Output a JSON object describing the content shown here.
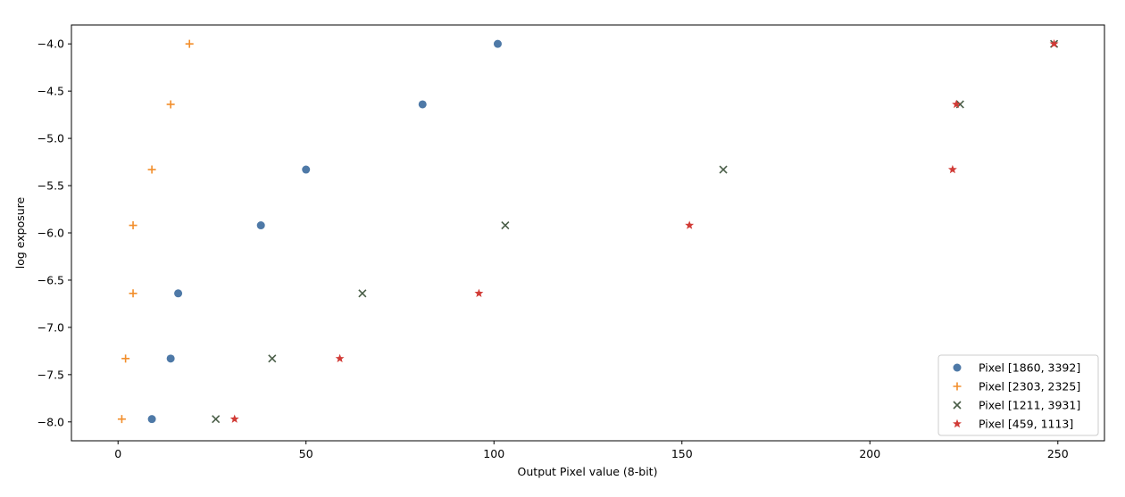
{
  "chart_data": {
    "type": "scatter",
    "title": "",
    "xlabel": "Output Pixel value (8-bit)",
    "ylabel": "log exposure",
    "xlim": [
      -12.4,
      262.4
    ],
    "ylim": [
      -8.2,
      -3.8
    ],
    "xticks": [
      0,
      50,
      100,
      150,
      200,
      250
    ],
    "yticks": [
      -8.0,
      -7.5,
      -7.0,
      -6.5,
      -6.0,
      -5.5,
      -5.0,
      -4.5,
      -4.0
    ],
    "ytick_labels": [
      "−8.0",
      "−7.5",
      "−7.0",
      "−6.5",
      "−6.0",
      "−5.5",
      "−5.0",
      "−4.5",
      "−4.0"
    ],
    "grid": false,
    "legend_placement": "lower-right",
    "series": [
      {
        "name": "Pixel [1860, 3392]",
        "marker": "circle",
        "color": "#4e79a7",
        "x": [
          9,
          14,
          16,
          38,
          50,
          81,
          101
        ],
        "y": [
          -7.97,
          -7.33,
          -6.64,
          -5.92,
          -5.33,
          -4.64,
          -4.0
        ]
      },
      {
        "name": "Pixel [2303, 2325]",
        "marker": "plus",
        "color": "#f28e2b",
        "x": [
          1,
          2,
          4,
          4,
          9,
          14,
          19
        ],
        "y": [
          -7.97,
          -7.33,
          -6.64,
          -5.92,
          -5.33,
          -4.64,
          -4.0
        ]
      },
      {
        "name": "Pixel [1211, 3931]",
        "marker": "x",
        "color": "#4a5e48",
        "x": [
          26,
          41,
          65,
          103,
          161,
          224,
          249
        ],
        "y": [
          -7.97,
          -7.33,
          -6.64,
          -5.92,
          -5.33,
          -4.64,
          -4.0
        ]
      },
      {
        "name": "Pixel [459, 1113]",
        "marker": "star",
        "color": "#d13b36",
        "x": [
          31,
          59,
          96,
          152,
          222,
          223,
          249
        ],
        "y": [
          -7.97,
          -7.33,
          -6.64,
          -5.92,
          -5.33,
          -4.64,
          -4.0
        ]
      }
    ]
  }
}
